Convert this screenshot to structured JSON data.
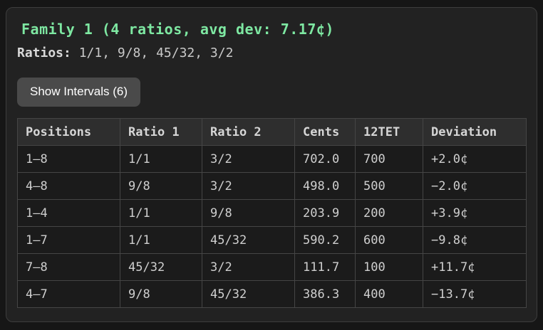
{
  "panel": {
    "title": "Family 1 (4 ratios, avg dev: 7.17¢)",
    "ratios_label": "Ratios:",
    "ratios_value": "1/1, 9/8, 45/32, 3/2",
    "button_label": "Show Intervals (6)"
  },
  "colors": {
    "accent_green": "#7ee8a2",
    "outer_background": "#161616",
    "panel_background": "#222222",
    "panel_border": "#3d3d3d",
    "table_header_background": "#2e2e2e",
    "table_row_background": "#1b1b1b",
    "table_border": "#454545",
    "button_background": "#4a4a4a",
    "text_primary": "#d6d6d6",
    "text_secondary": "#c9c9c9"
  },
  "table": {
    "columns": [
      "Positions",
      "Ratio 1",
      "Ratio 2",
      "Cents",
      "12TET",
      "Deviation"
    ],
    "rows": [
      [
        "1–8",
        "1/1",
        "3/2",
        "702.0",
        "700",
        "+2.0¢"
      ],
      [
        "4–8",
        "9/8",
        "3/2",
        "498.0",
        "500",
        "−2.0¢"
      ],
      [
        "1–4",
        "1/1",
        "9/8",
        "203.9",
        "200",
        "+3.9¢"
      ],
      [
        "1–7",
        "1/1",
        "45/32",
        "590.2",
        "600",
        "−9.8¢"
      ],
      [
        "7–8",
        "45/32",
        "3/2",
        "111.7",
        "100",
        "+11.7¢"
      ],
      [
        "4–7",
        "9/8",
        "45/32",
        "386.3",
        "400",
        "−13.7¢"
      ]
    ]
  }
}
